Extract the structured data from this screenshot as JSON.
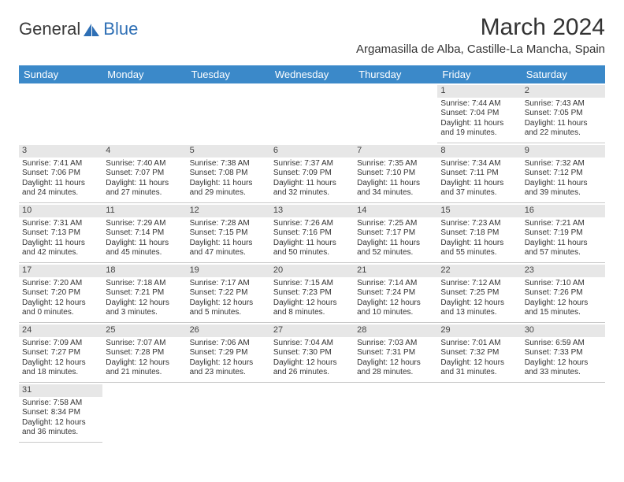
{
  "brand": {
    "part1": "General",
    "part2": "Blue"
  },
  "title": "March 2024",
  "location": "Argamasilla de Alba, Castille-La Mancha, Spain",
  "colors": {
    "header_bg": "#3b89c9",
    "header_text": "#ffffff",
    "daynum_bg": "#e7e7e7",
    "cell_border": "#c9c9c9",
    "text": "#333333",
    "logo_blue": "#2e6fb5"
  },
  "day_headers": [
    "Sunday",
    "Monday",
    "Tuesday",
    "Wednesday",
    "Thursday",
    "Friday",
    "Saturday"
  ],
  "weeks": [
    [
      null,
      null,
      null,
      null,
      null,
      {
        "n": "1",
        "sr": "7:44 AM",
        "ss": "7:04 PM",
        "dl": "11 hours and 19 minutes."
      },
      {
        "n": "2",
        "sr": "7:43 AM",
        "ss": "7:05 PM",
        "dl": "11 hours and 22 minutes."
      }
    ],
    [
      {
        "n": "3",
        "sr": "7:41 AM",
        "ss": "7:06 PM",
        "dl": "11 hours and 24 minutes."
      },
      {
        "n": "4",
        "sr": "7:40 AM",
        "ss": "7:07 PM",
        "dl": "11 hours and 27 minutes."
      },
      {
        "n": "5",
        "sr": "7:38 AM",
        "ss": "7:08 PM",
        "dl": "11 hours and 29 minutes."
      },
      {
        "n": "6",
        "sr": "7:37 AM",
        "ss": "7:09 PM",
        "dl": "11 hours and 32 minutes."
      },
      {
        "n": "7",
        "sr": "7:35 AM",
        "ss": "7:10 PM",
        "dl": "11 hours and 34 minutes."
      },
      {
        "n": "8",
        "sr": "7:34 AM",
        "ss": "7:11 PM",
        "dl": "11 hours and 37 minutes."
      },
      {
        "n": "9",
        "sr": "7:32 AM",
        "ss": "7:12 PM",
        "dl": "11 hours and 39 minutes."
      }
    ],
    [
      {
        "n": "10",
        "sr": "7:31 AM",
        "ss": "7:13 PM",
        "dl": "11 hours and 42 minutes."
      },
      {
        "n": "11",
        "sr": "7:29 AM",
        "ss": "7:14 PM",
        "dl": "11 hours and 45 minutes."
      },
      {
        "n": "12",
        "sr": "7:28 AM",
        "ss": "7:15 PM",
        "dl": "11 hours and 47 minutes."
      },
      {
        "n": "13",
        "sr": "7:26 AM",
        "ss": "7:16 PM",
        "dl": "11 hours and 50 minutes."
      },
      {
        "n": "14",
        "sr": "7:25 AM",
        "ss": "7:17 PM",
        "dl": "11 hours and 52 minutes."
      },
      {
        "n": "15",
        "sr": "7:23 AM",
        "ss": "7:18 PM",
        "dl": "11 hours and 55 minutes."
      },
      {
        "n": "16",
        "sr": "7:21 AM",
        "ss": "7:19 PM",
        "dl": "11 hours and 57 minutes."
      }
    ],
    [
      {
        "n": "17",
        "sr": "7:20 AM",
        "ss": "7:20 PM",
        "dl": "12 hours and 0 minutes."
      },
      {
        "n": "18",
        "sr": "7:18 AM",
        "ss": "7:21 PM",
        "dl": "12 hours and 3 minutes."
      },
      {
        "n": "19",
        "sr": "7:17 AM",
        "ss": "7:22 PM",
        "dl": "12 hours and 5 minutes."
      },
      {
        "n": "20",
        "sr": "7:15 AM",
        "ss": "7:23 PM",
        "dl": "12 hours and 8 minutes."
      },
      {
        "n": "21",
        "sr": "7:14 AM",
        "ss": "7:24 PM",
        "dl": "12 hours and 10 minutes."
      },
      {
        "n": "22",
        "sr": "7:12 AM",
        "ss": "7:25 PM",
        "dl": "12 hours and 13 minutes."
      },
      {
        "n": "23",
        "sr": "7:10 AM",
        "ss": "7:26 PM",
        "dl": "12 hours and 15 minutes."
      }
    ],
    [
      {
        "n": "24",
        "sr": "7:09 AM",
        "ss": "7:27 PM",
        "dl": "12 hours and 18 minutes."
      },
      {
        "n": "25",
        "sr": "7:07 AM",
        "ss": "7:28 PM",
        "dl": "12 hours and 21 minutes."
      },
      {
        "n": "26",
        "sr": "7:06 AM",
        "ss": "7:29 PM",
        "dl": "12 hours and 23 minutes."
      },
      {
        "n": "27",
        "sr": "7:04 AM",
        "ss": "7:30 PM",
        "dl": "12 hours and 26 minutes."
      },
      {
        "n": "28",
        "sr": "7:03 AM",
        "ss": "7:31 PM",
        "dl": "12 hours and 28 minutes."
      },
      {
        "n": "29",
        "sr": "7:01 AM",
        "ss": "7:32 PM",
        "dl": "12 hours and 31 minutes."
      },
      {
        "n": "30",
        "sr": "6:59 AM",
        "ss": "7:33 PM",
        "dl": "12 hours and 33 minutes."
      }
    ],
    [
      {
        "n": "31",
        "sr": "7:58 AM",
        "ss": "8:34 PM",
        "dl": "12 hours and 36 minutes."
      },
      null,
      null,
      null,
      null,
      null,
      null
    ]
  ],
  "labels": {
    "sunrise": "Sunrise:",
    "sunset": "Sunset:",
    "daylight": "Daylight:"
  }
}
